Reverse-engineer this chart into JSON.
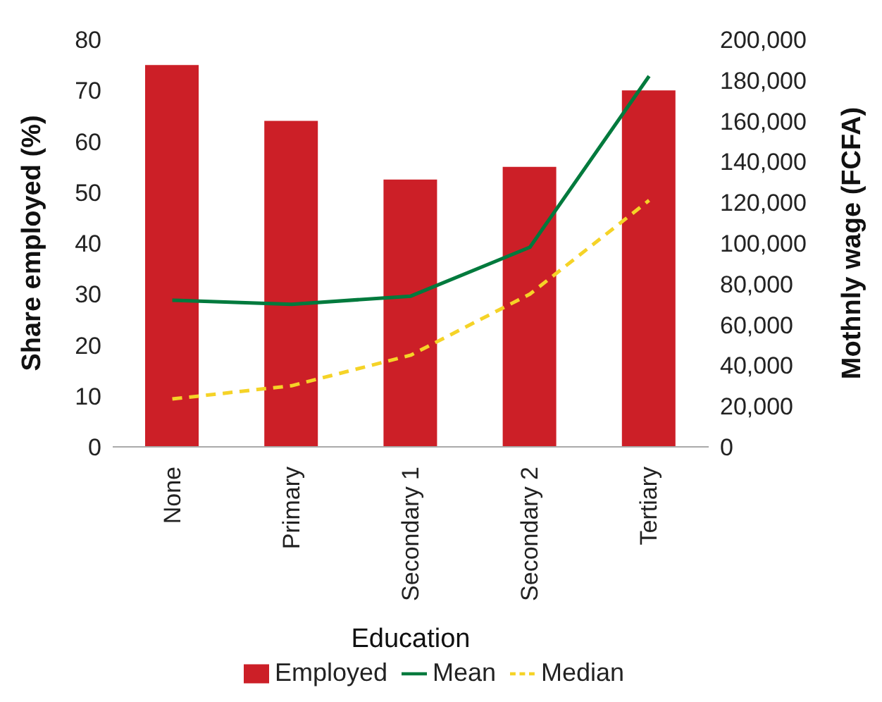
{
  "chart_data": {
    "type": "bar",
    "xlabel": "Education",
    "ylabel": "Share employed (%)",
    "y2label": "Mothnly wage (FCFA)",
    "categories": [
      "None",
      "Primary",
      "Secondary 1",
      "Secondary 2",
      "Tertiary"
    ],
    "series": [
      {
        "name": "Employed",
        "color": "#cc1f27",
        "values": [
          75,
          64,
          52.5,
          55,
          70
        ]
      },
      {
        "name": "Mean",
        "type": "line",
        "axis": "y2",
        "color": "#007a3d",
        "line_style": "solid",
        "values": [
          72000,
          70000,
          74000,
          98000,
          182000
        ]
      },
      {
        "name": "Median",
        "type": "line",
        "axis": "y2",
        "color": "#f5d327",
        "line_style": "dashed",
        "values": [
          23500,
          30000,
          45000,
          75000,
          121000
        ]
      }
    ],
    "ylim": [
      0,
      80
    ],
    "yticks": [
      0,
      10,
      20,
      30,
      40,
      50,
      60,
      70,
      80
    ],
    "y2lim": [
      0,
      200000
    ],
    "y2ticks": [
      {
        "value": 0,
        "label": "0"
      },
      {
        "value": 20000,
        "label": "20,000"
      },
      {
        "value": 40000,
        "label": "40,000"
      },
      {
        "value": 60000,
        "label": "60,000"
      },
      {
        "value": 80000,
        "label": "80,000"
      },
      {
        "value": 100000,
        "label": "100,000"
      },
      {
        "value": 120000,
        "label": "120,000"
      },
      {
        "value": 140000,
        "label": "140,000"
      },
      {
        "value": 160000,
        "label": "160,000"
      },
      {
        "value": 180000,
        "label": "180,000"
      },
      {
        "value": 200000,
        "label": "200,000"
      }
    ],
    "grid": false,
    "legend": "bottom",
    "marker": "none"
  }
}
